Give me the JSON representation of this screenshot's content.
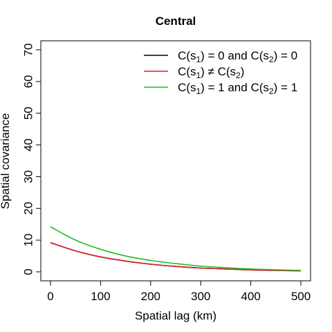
{
  "chart_data": {
    "type": "line",
    "title": "Central",
    "xlabel": "Spatial lag (km)",
    "ylabel": "Spatial covariance",
    "xlim": [
      0,
      500
    ],
    "ylim": [
      0,
      70
    ],
    "xticks": [
      0,
      100,
      200,
      300,
      400,
      500
    ],
    "yticks": [
      0,
      10,
      20,
      30,
      40,
      50,
      60,
      70
    ],
    "grid": false,
    "legend_position": "top-right",
    "series": [
      {
        "name": "C(s1) = 0 and C(s2) = 0",
        "color": "#000000",
        "x": [
          0,
          50,
          100,
          150,
          200,
          250,
          300,
          350,
          400,
          450,
          500
        ],
        "y": [
          9.2,
          6.6,
          4.7,
          3.4,
          2.4,
          1.7,
          1.2,
          0.9,
          0.6,
          0.45,
          0.3
        ]
      },
      {
        "name": "C(s1) ≠ C(s2)",
        "color": "#df1f2a",
        "x": [
          0,
          50,
          100,
          150,
          200,
          250,
          300,
          350,
          400,
          450,
          500
        ],
        "y": [
          9.2,
          6.6,
          4.7,
          3.4,
          2.4,
          1.7,
          1.2,
          0.9,
          0.6,
          0.45,
          0.3
        ]
      },
      {
        "name": "C(s1) = 1 and C(s2) = 1",
        "color": "#1dbf1d",
        "x": [
          0,
          50,
          100,
          150,
          200,
          250,
          300,
          350,
          400,
          450,
          500
        ],
        "y": [
          14.2,
          10.0,
          7.1,
          5.0,
          3.6,
          2.6,
          1.8,
          1.3,
          0.9,
          0.65,
          0.45
        ]
      }
    ],
    "legend": [
      {
        "pre": "C(s",
        "sub1": "1",
        "mid": ") = 0 and C(s",
        "sub2": "2",
        "post": ") = 0"
      },
      {
        "pre": "C(s",
        "sub1": "1",
        "mid": ") ≠ C(s",
        "sub2": "2",
        "post": ")"
      },
      {
        "pre": "C(s",
        "sub1": "1",
        "mid": ") = 1 and C(s",
        "sub2": "2",
        "post": ") = 1"
      }
    ]
  }
}
